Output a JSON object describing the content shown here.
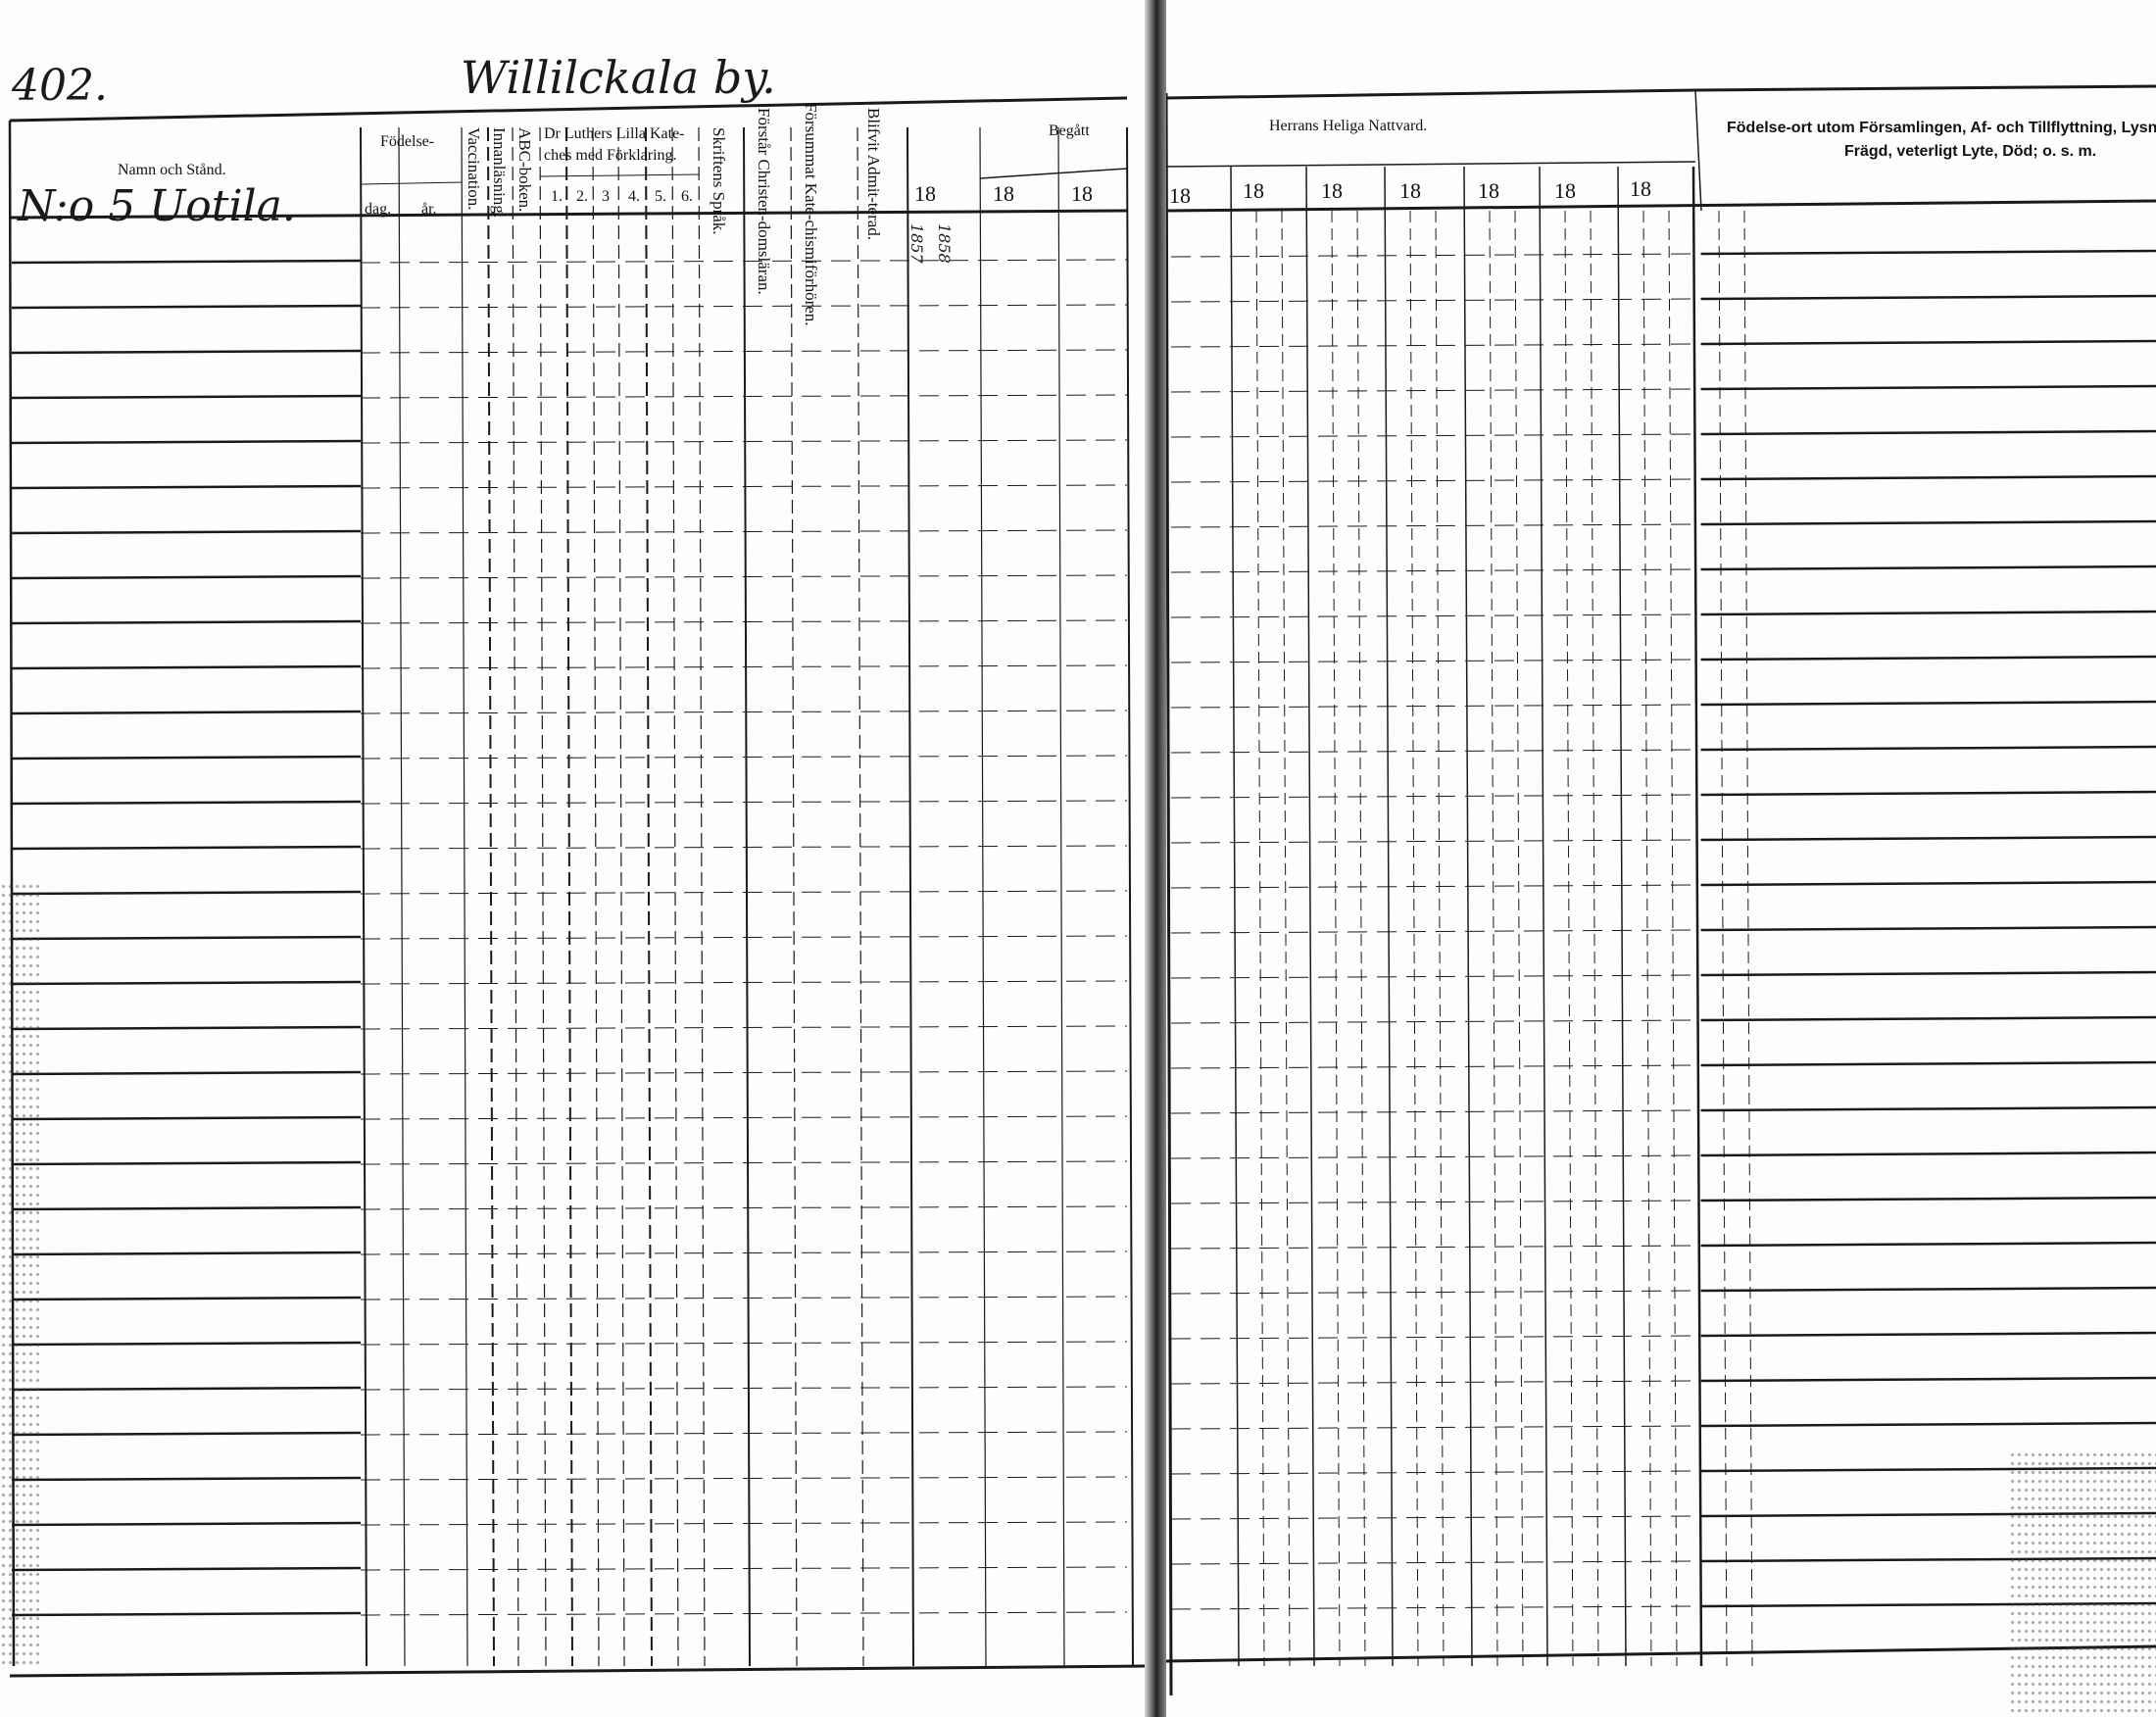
{
  "page_number": "402.",
  "village_name": "Willilckala by.",
  "household": "N:o 5 Uotila.",
  "left_page": {
    "headers": {
      "name": "Namn och Stånd.",
      "birth": "Födelse-",
      "birth_day": "dag.",
      "birth_year": "år.",
      "vaccination": "Vaccination.",
      "reading": "Innanläsning.",
      "abc_book": "ABC-boken.",
      "catechism": "Dr Luthers Lilla Kate-ches med Förklaring.",
      "catechism_parts": [
        "1.",
        "2.",
        "3",
        "4.",
        "5.",
        "6."
      ],
      "scripture_language": "Skriftens Språk.",
      "understands_doctrine": "Förstår Christen-domsläran.",
      "missed_catechism": "Försummat Kate-chismiförhören.",
      "admitted": "Blifvit Admit-terad.",
      "committed": "Begått",
      "year_cols": [
        "18",
        "18",
        "18"
      ]
    },
    "entries": [
      "1857",
      "1858"
    ]
  },
  "right_page": {
    "headers": {
      "communion": "Herrans Heliga Nattvard.",
      "year_cols": [
        "18",
        "18",
        "18",
        "18",
        "18",
        "18",
        "18"
      ],
      "remarks_line1": "Födelse-ort utom Församlingen, Af- och Tillflyttning, Lysn",
      "remarks_line2": "Frägd, veterligt Lyte, Död; o. s. m."
    }
  }
}
